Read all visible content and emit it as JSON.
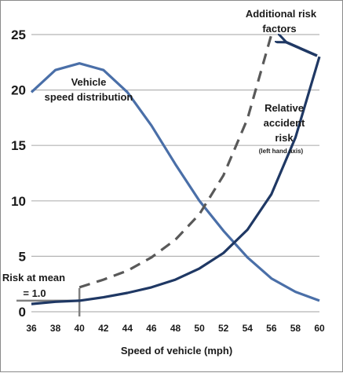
{
  "chart_data": {
    "type": "line",
    "xlabel": "Speed of vehicle (mph)",
    "xlim": [
      36,
      60
    ],
    "ylim": [
      0,
      25
    ],
    "x_ticks": [
      36,
      38,
      40,
      42,
      44,
      46,
      48,
      50,
      52,
      54,
      56,
      58,
      60
    ],
    "y_ticks": [
      0,
      5,
      10,
      15,
      20,
      25
    ],
    "grid": "horizontal",
    "colors": {
      "speed_distribution": "#4a6fa8",
      "relative_risk": "#1f3864",
      "additional_risk": "#595959",
      "mean_marker": "#808080",
      "gridline": "#b3b3b3"
    },
    "series": [
      {
        "key": "speed_distribution",
        "style": "solid",
        "x": [
          36,
          38,
          40,
          42,
          44,
          46,
          48,
          50,
          52,
          54,
          56,
          58,
          60
        ],
        "values": [
          19.8,
          21.8,
          22.4,
          21.8,
          19.8,
          16.8,
          13.3,
          10.0,
          7.3,
          4.9,
          3.0,
          1.8,
          1.0
        ]
      },
      {
        "key": "relative_risk",
        "style": "solid",
        "x": [
          36,
          38,
          40,
          42,
          44,
          46,
          48,
          50,
          52,
          54,
          56,
          58,
          60
        ],
        "values": [
          0.7,
          0.9,
          1.0,
          1.3,
          1.7,
          2.2,
          2.9,
          3.9,
          5.3,
          7.4,
          10.6,
          15.7,
          23.0
        ]
      },
      {
        "key": "additional_risk",
        "style": "dashed",
        "x": [
          40,
          42,
          44,
          46,
          48,
          50,
          52,
          54,
          56
        ],
        "values": [
          2.2,
          2.9,
          3.7,
          4.9,
          6.5,
          8.8,
          12.3,
          17.4,
          25.0
        ]
      }
    ],
    "annotations": {
      "speed_distribution": [
        "Vehicle",
        "speed distribution"
      ],
      "relative_risk": [
        "Relative",
        "accident",
        "risk"
      ],
      "relative_risk_note": "(left hand axis)",
      "additional_risk": [
        "Additional risk",
        "factors"
      ],
      "risk_at_mean": [
        "Risk at mean",
        "= 1.0"
      ]
    },
    "mean_risk": {
      "x": 40,
      "y": 1.0
    }
  }
}
